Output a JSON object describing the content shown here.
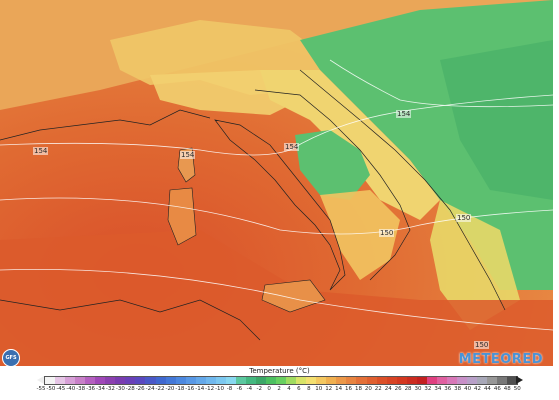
{
  "map": {
    "legend_title": "Temperature (°C)",
    "legend_ticks": [
      "-55",
      "-50",
      "-45",
      "-40",
      "-38",
      "-36",
      "-34",
      "-32",
      "-30",
      "-28",
      "-26",
      "-24",
      "-22",
      "-20",
      "-18",
      "-16",
      "-14",
      "-12",
      "-10",
      "-8",
      "-6",
      "-4",
      "-2",
      "0",
      "2",
      "4",
      "6",
      "8",
      "10",
      "12",
      "14",
      "16",
      "18",
      "20",
      "22",
      "24",
      "26",
      "28",
      "30",
      "32",
      "34",
      "36",
      "38",
      "40",
      "42",
      "44",
      "46",
      "48",
      "50"
    ],
    "legend_colors": [
      "#f4f4f4",
      "#e6c6e6",
      "#d7a0d7",
      "#c880c8",
      "#b560c0",
      "#a048b8",
      "#8c40b0",
      "#7a3cb0",
      "#6a40b8",
      "#5a48c0",
      "#4a58c8",
      "#4068d0",
      "#4478d8",
      "#4c88e0",
      "#5898e6",
      "#64a8ea",
      "#70b8ee",
      "#7cc8f0",
      "#88d8f0",
      "#5cc8a0",
      "#44b880",
      "#3ca868",
      "#4cc060",
      "#68d060",
      "#a0dc60",
      "#d8e468",
      "#f4e070",
      "#f4c860",
      "#f0b050",
      "#ec9848",
      "#e88440",
      "#e47038",
      "#e06030",
      "#dc5028",
      "#d84424",
      "#d43820",
      "#cc2c20",
      "#c42020",
      "#e04080",
      "#e060a0",
      "#d878b8",
      "#c890c8",
      "#b8a0c8",
      "#a8a8b8",
      "#989898",
      "#787878",
      "#505050"
    ],
    "iso_labels": [
      "154",
      "154",
      "154",
      "154",
      "150",
      "150",
      "150"
    ],
    "logo_left": "GFS",
    "logo_right": "METEORED"
  }
}
